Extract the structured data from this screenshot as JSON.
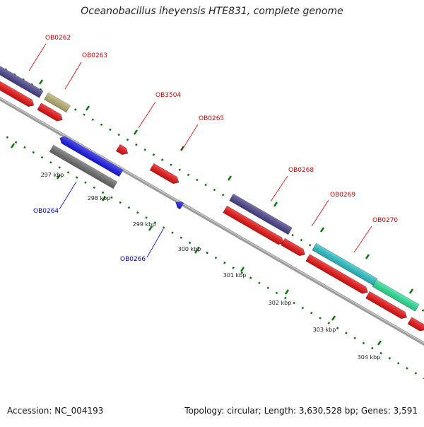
{
  "title": "Oceanobacillus iheyensis HTE831, complete genome",
  "footer": {
    "accession_label": "Accession:",
    "accession": "NC_004193",
    "topology_label": "Topology:",
    "topology": "circular",
    "length_label": "Length:",
    "length": "3,630,528 bp",
    "genes_label": "Genes:",
    "genes": "3,591"
  },
  "ticks": [
    "297 kbp",
    "298 kbp",
    "299 kbp",
    "300 kbp",
    "301 kbp",
    "302 kbp",
    "303 kbp",
    "304 kbp"
  ],
  "gene_labels": [
    {
      "name": "OB0262",
      "strand": "forward",
      "color": "#dd0000"
    },
    {
      "name": "OB0263",
      "strand": "forward",
      "color": "#dd0000"
    },
    {
      "name": "OB3504",
      "strand": "forward",
      "color": "#dd0000"
    },
    {
      "name": "OB0265",
      "strand": "forward",
      "color": "#dd0000"
    },
    {
      "name": "OB0268",
      "strand": "forward",
      "color": "#dd0000"
    },
    {
      "name": "OB0269",
      "strand": "forward",
      "color": "#dd0000"
    },
    {
      "name": "OB0270",
      "strand": "forward",
      "color": "#dd0000"
    },
    {
      "name": "OB0264",
      "strand": "reverse",
      "color": "#0000cc"
    },
    {
      "name": "OB0266",
      "strand": "reverse",
      "color": "#0000cc"
    }
  ],
  "colors": {
    "backbone": "#8c8c8c",
    "dots": "#0a7a0a",
    "forward_gene": "#ee1111",
    "reverse_gene": "#1a1aee",
    "cog_navy": "#4b4490",
    "cog_olive": "#b9b270",
    "cog_cyan": "#2bc4cc",
    "cog_green": "#2be49a",
    "cog_gray": "#6e6e6e"
  }
}
